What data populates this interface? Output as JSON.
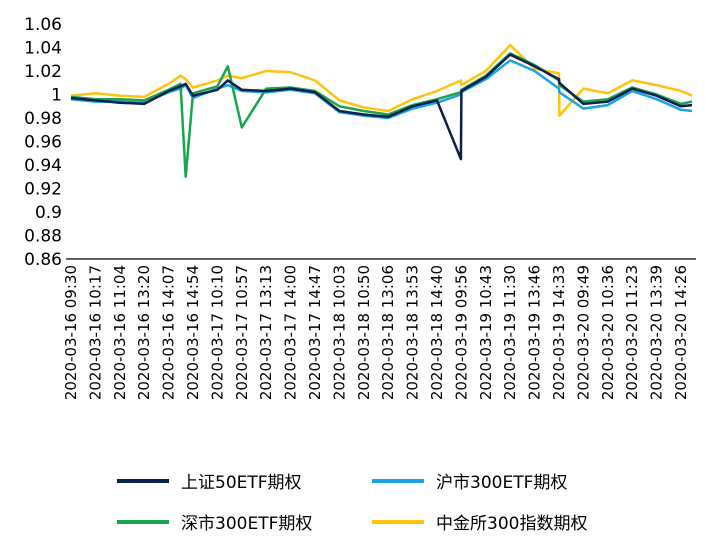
{
  "chart_data": {
    "type": "line",
    "ylim": [
      0.86,
      1.06
    ],
    "yticks": [
      "1.06",
      "1.04",
      "1.02",
      "1",
      "0.98",
      "0.96",
      "0.94",
      "0.92",
      "0.9",
      "0.88",
      "0.86"
    ],
    "x_tick_labels": [
      "2020-03-16 09:30",
      "2020-03-16 10:17",
      "2020-03-16 11:04",
      "2020-03-16 13:20",
      "2020-03-16 14:07",
      "2020-03-16 14:54",
      "2020-03-17 10:10",
      "2020-03-17 10:57",
      "2020-03-17 13:13",
      "2020-03-17 14:00",
      "2020-03-17 14:47",
      "2020-03-18 10:03",
      "2020-03-18 10:50",
      "2020-03-18 13:06",
      "2020-03-18 13:53",
      "2020-03-18 14:40",
      "2020-03-19 09:56",
      "2020-03-19 10:43",
      "2020-03-19 11:30",
      "2020-03-19 13:46",
      "2020-03-19 14:33",
      "2020-03-20 09:49",
      "2020-03-20 10:36",
      "2020-03-20 11:23",
      "2020-03-20 13:39",
      "2020-03-20 14:26"
    ],
    "x": [
      "2020-03-16 09:30",
      "2020-03-16 10:17",
      "2020-03-16 11:04",
      "2020-03-16 13:20",
      "2020-03-16 14:07",
      "2020-03-16 14:30",
      "2020-03-16 14:40",
      "2020-03-16 14:54",
      "2020-03-17 10:10",
      "2020-03-17 10:30",
      "2020-03-17 10:57",
      "2020-03-17 13:13",
      "2020-03-17 14:00",
      "2020-03-17 14:47",
      "2020-03-18 10:03",
      "2020-03-18 10:50",
      "2020-03-18 13:06",
      "2020-03-18 13:53",
      "2020-03-18 14:40",
      "2020-03-19 09:30",
      "2020-03-19 09:56",
      "2020-03-19 10:43",
      "2020-03-19 11:30",
      "2020-03-19 13:46",
      "2020-03-19 14:33",
      "2020-03-19 14:50",
      "2020-03-20 09:49",
      "2020-03-20 10:36",
      "2020-03-20 11:23",
      "2020-03-20 13:39",
      "2020-03-20 14:26",
      "2020-03-20 15:00"
    ],
    "series": [
      {
        "name": "上证50ETF期权",
        "color": "#0d1f4f",
        "values": [
          0.997,
          0.995,
          0.993,
          0.992,
          1.003,
          1.007,
          1.009,
          0.999,
          1.004,
          1.012,
          1.004,
          1.003,
          1.005,
          1.002,
          0.986,
          0.983,
          0.981,
          0.99,
          0.995,
          0.945,
          1.003,
          1.015,
          1.034,
          1.024,
          1.013,
          1.01,
          0.992,
          0.994,
          1.005,
          0.999,
          0.99,
          0.991
        ]
      },
      {
        "name": "沪市300ETF期权",
        "color": "#1aa3e8",
        "values": [
          0.996,
          0.994,
          0.994,
          0.993,
          1.002,
          1.005,
          1.008,
          0.997,
          1.005,
          1.008,
          1.003,
          1.002,
          1.004,
          1.001,
          0.985,
          0.982,
          0.98,
          0.988,
          0.993,
          1.0,
          1.002,
          1.013,
          1.029,
          1.02,
          1.005,
          1.002,
          0.988,
          0.991,
          1.003,
          0.996,
          0.987,
          0.986
        ]
      },
      {
        "name": "深市300ETF期权",
        "color": "#18a54e",
        "values": [
          0.998,
          0.996,
          0.996,
          0.995,
          1.004,
          1.009,
          0.93,
          1.001,
          1.007,
          1.024,
          0.972,
          1.005,
          1.006,
          1.003,
          0.99,
          0.986,
          0.983,
          0.991,
          0.996,
          1.002,
          1.004,
          1.016,
          1.035,
          1.025,
          1.012,
          1.008,
          0.994,
          0.996,
          1.006,
          1.0,
          0.992,
          0.994
        ]
      },
      {
        "name": "中金所300指数期权",
        "color": "#ffc20e",
        "values": [
          0.999,
          1.001,
          0.999,
          0.998,
          1.009,
          1.016,
          1.013,
          1.006,
          1.012,
          1.016,
          1.014,
          1.02,
          1.019,
          1.012,
          0.995,
          0.989,
          0.986,
          0.996,
          1.003,
          1.012,
          1.008,
          1.02,
          1.042,
          1.022,
          1.018,
          0.982,
          1.005,
          1.001,
          1.012,
          1.008,
          1.003,
          0.999
        ]
      }
    ]
  }
}
